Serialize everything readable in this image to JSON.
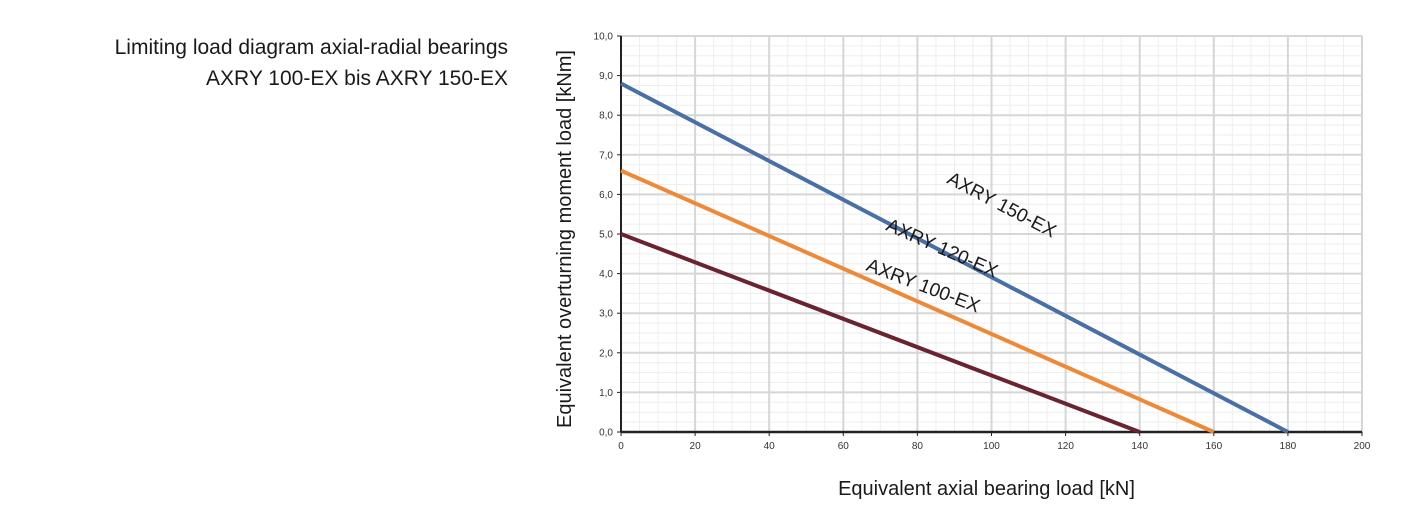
{
  "title": {
    "line1": "Limiting load diagram axial-radial bearings",
    "line2": "AXRY 100-EX bis AXRY 150-EX"
  },
  "chart_data": {
    "type": "line",
    "xlabel": "Equivalent axial bearing load [kN]",
    "ylabel": "Equivalent overturning moment load [kNm]",
    "xlim": [
      0,
      200
    ],
    "ylim": [
      0,
      10
    ],
    "x_ticks": [
      "0",
      "20",
      "40",
      "60",
      "80",
      "100",
      "120",
      "140",
      "160",
      "180",
      "200"
    ],
    "y_ticks": [
      "0,0",
      "1,0",
      "2,0",
      "3,0",
      "4,0",
      "5,0",
      "6,0",
      "7,0",
      "8,0",
      "9,0",
      "10,0"
    ],
    "grid": true,
    "series": [
      {
        "name": "AXRY 150-EX",
        "color": "#4a6fa5",
        "x": [
          0,
          180
        ],
        "y": [
          8.8,
          0
        ]
      },
      {
        "name": "AXRY 120-EX",
        "color": "#ec8a3a",
        "x": [
          0,
          160
        ],
        "y": [
          6.6,
          0
        ]
      },
      {
        "name": "AXRY 100-EX",
        "color": "#6a2430",
        "x": [
          0,
          140
        ],
        "y": [
          5.0,
          0
        ]
      }
    ],
    "series_labels": [
      {
        "text": "AXRY 150-EX",
        "x": 102,
        "y": 5.6
      },
      {
        "text": "AXRY 120-EX",
        "x": 86,
        "y": 4.5
      },
      {
        "text": "AXRY 100-EX",
        "x": 81,
        "y": 3.55
      }
    ]
  }
}
